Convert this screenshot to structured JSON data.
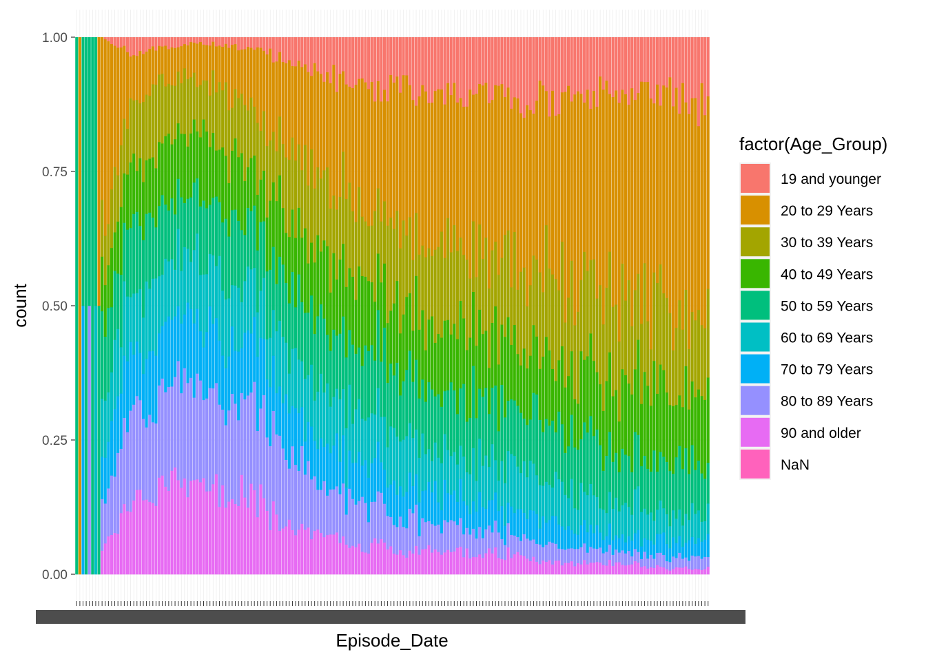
{
  "chart_data": {
    "type": "bar",
    "position": "fill",
    "xlabel": "Episode_Date",
    "ylabel": "count",
    "ylim": [
      0,
      1
    ],
    "y_ticks": [
      "0.00",
      "0.25",
      "0.50",
      "0.75",
      "1.00"
    ],
    "y_tick_values": [
      0,
      0.25,
      0.5,
      0.75,
      1
    ],
    "grid": true,
    "x_tick_labels": "overlapping, unreadable",
    "n_dates": 200,
    "legend": {
      "title": "factor(Age_Group)",
      "placement": "right"
    },
    "series": [
      {
        "name": "19 and younger",
        "color": "#F8766D"
      },
      {
        "name": "20 to 29 Years",
        "color": "#D89000"
      },
      {
        "name": "30 to 39 Years",
        "color": "#A3A500"
      },
      {
        "name": "40 to 49 Years",
        "color": "#39B600"
      },
      {
        "name": "50 to 59 Years",
        "color": "#00BF7D"
      },
      {
        "name": "60 to 69 Years",
        "color": "#00BFC4"
      },
      {
        "name": "70 to 79 Years",
        "color": "#00B0F6"
      },
      {
        "name": "80 to 89 Years",
        "color": "#9590FF"
      },
      {
        "name": "90 and older",
        "color": "#E76BF3"
      },
      {
        "name": "NaN",
        "color": "#FF62BC"
      }
    ],
    "early_bars_note": [
      {
        "index": 0,
        "values": [
          0,
          0,
          0,
          0,
          1,
          0,
          0,
          0,
          0,
          0
        ]
      },
      {
        "index": 1,
        "values": [
          0,
          1,
          0,
          0,
          0,
          0,
          0,
          0,
          0,
          0
        ]
      },
      {
        "index": 2,
        "values": [
          0,
          0,
          0,
          0,
          0.5,
          0,
          0.5,
          0,
          0,
          0
        ]
      },
      {
        "index": 3,
        "values": [
          0,
          0,
          0,
          0,
          1,
          0,
          0,
          0,
          0,
          0
        ]
      },
      {
        "index": 4,
        "values": [
          0,
          0,
          0,
          0,
          0.5,
          0,
          0,
          0.5,
          0,
          0
        ]
      },
      {
        "index": 5,
        "values": [
          0,
          0,
          0,
          0,
          1,
          0,
          0,
          0,
          0,
          0
        ]
      },
      {
        "index": 6,
        "values": [
          0,
          0,
          0,
          0,
          0.5,
          0.5,
          0,
          0,
          0,
          0
        ]
      },
      {
        "index": 7,
        "values": [
          0,
          0.5,
          0,
          0,
          0.5,
          0,
          0,
          0,
          0,
          0
        ]
      }
    ],
    "profile_keypoints": {
      "note": "approximate cumulative proportions from top (19 and younger boundary) across the date range, index 8 to 199",
      "t": [
        0.0,
        0.05,
        0.15,
        0.25,
        0.35,
        0.45,
        0.55,
        0.65,
        0.75,
        0.85,
        0.95,
        1.0
      ],
      "p19": [
        0.0,
        0.03,
        0.01,
        0.02,
        0.06,
        0.1,
        0.1,
        0.11,
        0.12,
        0.1,
        0.11,
        0.12
      ],
      "p20": [
        0.35,
        0.08,
        0.06,
        0.12,
        0.2,
        0.24,
        0.28,
        0.3,
        0.34,
        0.38,
        0.42,
        0.4
      ],
      "p30": [
        0.1,
        0.12,
        0.1,
        0.11,
        0.14,
        0.14,
        0.16,
        0.15,
        0.16,
        0.16,
        0.15,
        0.16
      ],
      "p40": [
        0.08,
        0.1,
        0.12,
        0.11,
        0.13,
        0.12,
        0.12,
        0.12,
        0.12,
        0.13,
        0.12,
        0.12
      ],
      "p50": [
        0.15,
        0.12,
        0.12,
        0.11,
        0.12,
        0.12,
        0.11,
        0.11,
        0.1,
        0.1,
        0.09,
        0.09
      ],
      "p60": [
        0.1,
        0.12,
        0.12,
        0.1,
        0.1,
        0.09,
        0.08,
        0.08,
        0.07,
        0.06,
        0.05,
        0.05
      ],
      "p70": [
        0.1,
        0.12,
        0.12,
        0.11,
        0.08,
        0.07,
        0.06,
        0.05,
        0.04,
        0.03,
        0.03,
        0.03
      ],
      "p80": [
        0.08,
        0.18,
        0.18,
        0.18,
        0.1,
        0.07,
        0.05,
        0.04,
        0.03,
        0.02,
        0.02,
        0.02
      ],
      "p90": [
        0.04,
        0.13,
        0.17,
        0.14,
        0.07,
        0.05,
        0.04,
        0.04,
        0.02,
        0.02,
        0.01,
        0.01
      ]
    }
  }
}
